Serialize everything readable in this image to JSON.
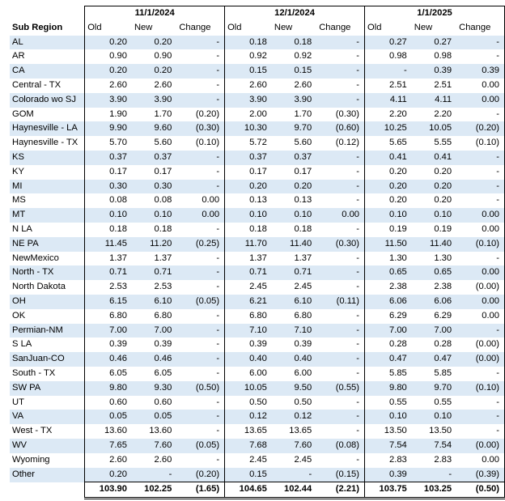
{
  "groups": [
    "11/1/2024",
    "12/1/2024",
    "1/1/2025"
  ],
  "header": {
    "sub_region": "Sub Region",
    "old": "Old",
    "new": "New",
    "change": "Change"
  },
  "rows": [
    {
      "region": "AL",
      "v": [
        "0.20",
        "0.20",
        "-",
        "0.18",
        "0.18",
        "-",
        "0.27",
        "0.27",
        "-"
      ]
    },
    {
      "region": "AR",
      "v": [
        "0.90",
        "0.90",
        "-",
        "0.92",
        "0.92",
        "-",
        "0.98",
        "0.98",
        "-"
      ]
    },
    {
      "region": "CA",
      "v": [
        "0.20",
        "0.20",
        "-",
        "0.15",
        "0.15",
        "-",
        "-",
        "0.39",
        "0.39"
      ]
    },
    {
      "region": "Central - TX",
      "v": [
        "2.60",
        "2.60",
        "-",
        "2.60",
        "2.60",
        "-",
        "2.51",
        "2.51",
        "0.00"
      ]
    },
    {
      "region": "Colorado wo SJ",
      "v": [
        "3.90",
        "3.90",
        "-",
        "3.90",
        "3.90",
        "-",
        "4.11",
        "4.11",
        "0.00"
      ]
    },
    {
      "region": "GOM",
      "v": [
        "1.90",
        "1.70",
        "(0.20)",
        "2.00",
        "1.70",
        "(0.30)",
        "2.20",
        "2.20",
        "-"
      ]
    },
    {
      "region": "Haynesville - LA",
      "v": [
        "9.90",
        "9.60",
        "(0.30)",
        "10.30",
        "9.70",
        "(0.60)",
        "10.25",
        "10.05",
        "(0.20)"
      ]
    },
    {
      "region": "Haynesville - TX",
      "v": [
        "5.70",
        "5.60",
        "(0.10)",
        "5.72",
        "5.60",
        "(0.12)",
        "5.65",
        "5.55",
        "(0.10)"
      ]
    },
    {
      "region": "KS",
      "v": [
        "0.37",
        "0.37",
        "-",
        "0.37",
        "0.37",
        "-",
        "0.41",
        "0.41",
        "-"
      ]
    },
    {
      "region": "KY",
      "v": [
        "0.17",
        "0.17",
        "-",
        "0.17",
        "0.17",
        "-",
        "0.20",
        "0.20",
        "-"
      ]
    },
    {
      "region": "MI",
      "v": [
        "0.30",
        "0.30",
        "-",
        "0.20",
        "0.20",
        "-",
        "0.20",
        "0.20",
        "-"
      ]
    },
    {
      "region": "MS",
      "v": [
        "0.08",
        "0.08",
        "0.00",
        "0.13",
        "0.13",
        "-",
        "0.20",
        "0.20",
        "-"
      ]
    },
    {
      "region": "MT",
      "v": [
        "0.10",
        "0.10",
        "0.00",
        "0.10",
        "0.10",
        "0.00",
        "0.10",
        "0.10",
        "0.00"
      ]
    },
    {
      "region": "N LA",
      "v": [
        "0.18",
        "0.18",
        "-",
        "0.18",
        "0.18",
        "-",
        "0.19",
        "0.19",
        "0.00"
      ]
    },
    {
      "region": "NE PA",
      "v": [
        "11.45",
        "11.20",
        "(0.25)",
        "11.70",
        "11.40",
        "(0.30)",
        "11.50",
        "11.40",
        "(0.10)"
      ]
    },
    {
      "region": "NewMexico",
      "v": [
        "1.37",
        "1.37",
        "-",
        "1.37",
        "1.37",
        "-",
        "1.30",
        "1.30",
        "-"
      ]
    },
    {
      "region": "North - TX",
      "v": [
        "0.71",
        "0.71",
        "-",
        "0.71",
        "0.71",
        "-",
        "0.65",
        "0.65",
        "0.00"
      ]
    },
    {
      "region": "North Dakota",
      "v": [
        "2.53",
        "2.53",
        "-",
        "2.45",
        "2.45",
        "-",
        "2.38",
        "2.38",
        "(0.00)"
      ]
    },
    {
      "region": "OH",
      "v": [
        "6.15",
        "6.10",
        "(0.05)",
        "6.21",
        "6.10",
        "(0.11)",
        "6.06",
        "6.06",
        "0.00"
      ]
    },
    {
      "region": "OK",
      "v": [
        "6.80",
        "6.80",
        "-",
        "6.80",
        "6.80",
        "-",
        "6.29",
        "6.29",
        "0.00"
      ]
    },
    {
      "region": "Permian-NM",
      "v": [
        "7.00",
        "7.00",
        "-",
        "7.10",
        "7.10",
        "-",
        "7.00",
        "7.00",
        "-"
      ]
    },
    {
      "region": "S LA",
      "v": [
        "0.39",
        "0.39",
        "-",
        "0.39",
        "0.39",
        "-",
        "0.28",
        "0.28",
        "(0.00)"
      ]
    },
    {
      "region": "SanJuan-CO",
      "v": [
        "0.46",
        "0.46",
        "-",
        "0.40",
        "0.40",
        "-",
        "0.47",
        "0.47",
        "(0.00)"
      ]
    },
    {
      "region": "South - TX",
      "v": [
        "6.05",
        "6.05",
        "-",
        "6.00",
        "6.00",
        "-",
        "5.85",
        "5.85",
        "-"
      ]
    },
    {
      "region": "SW PA",
      "v": [
        "9.80",
        "9.30",
        "(0.50)",
        "10.05",
        "9.50",
        "(0.55)",
        "9.80",
        "9.70",
        "(0.10)"
      ]
    },
    {
      "region": "UT",
      "v": [
        "0.60",
        "0.60",
        "-",
        "0.50",
        "0.50",
        "-",
        "0.55",
        "0.55",
        "-"
      ]
    },
    {
      "region": "VA",
      "v": [
        "0.05",
        "0.05",
        "-",
        "0.12",
        "0.12",
        "-",
        "0.10",
        "0.10",
        "-"
      ]
    },
    {
      "region": "West - TX",
      "v": [
        "13.60",
        "13.60",
        "-",
        "13.65",
        "13.65",
        "-",
        "13.50",
        "13.50",
        "-"
      ]
    },
    {
      "region": "WV",
      "v": [
        "7.65",
        "7.60",
        "(0.05)",
        "7.68",
        "7.60",
        "(0.08)",
        "7.54",
        "7.54",
        "(0.00)"
      ]
    },
    {
      "region": "Wyoming",
      "v": [
        "2.60",
        "2.60",
        "-",
        "2.45",
        "2.45",
        "-",
        "2.83",
        "2.83",
        "0.00"
      ]
    },
    {
      "region": "Other",
      "v": [
        "0.20",
        "-",
        "(0.20)",
        "0.15",
        "-",
        "(0.15)",
        "0.39",
        "-",
        "(0.39)"
      ]
    }
  ],
  "totals": [
    "103.90",
    "102.25",
    "(1.65)",
    "104.65",
    "102.44",
    "(2.21)",
    "103.75",
    "103.25",
    "(0.50)"
  ],
  "colors": {
    "band": "#dce9f5",
    "border": "#000000"
  }
}
